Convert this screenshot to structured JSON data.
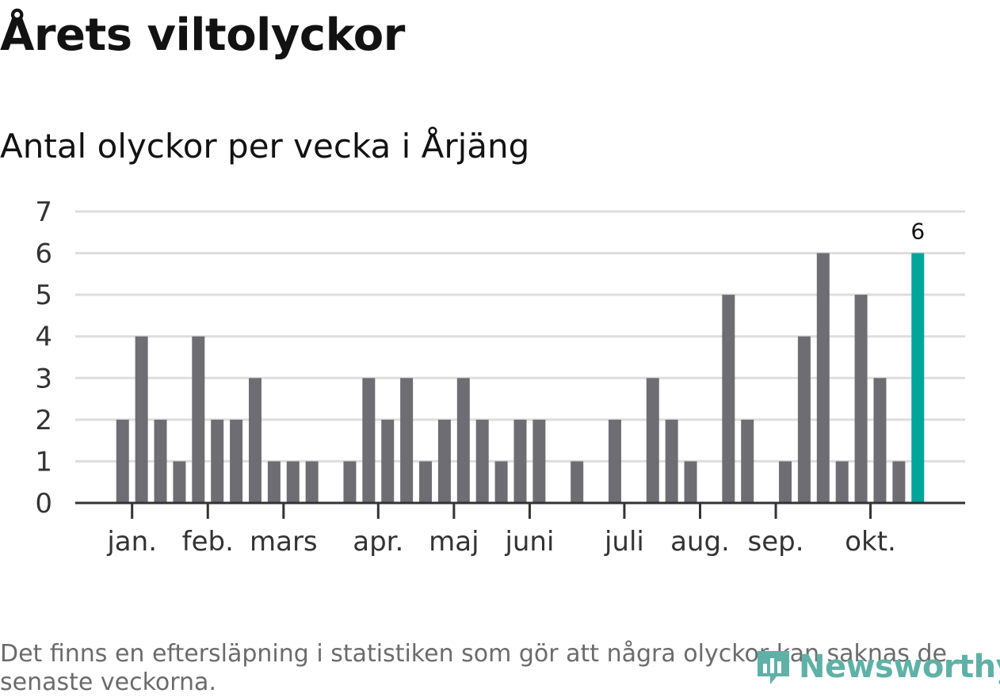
{
  "header": {
    "title": "Årets viltolyckor",
    "subtitle": "Antal olyckor per vecka i Årjäng"
  },
  "footer": {
    "note": "Det finns en eftersläpning i statistiken som gör att några olyckor kan saknas de senaste veckorna.",
    "brand": "Newsworthy"
  },
  "colors": {
    "bar": "#6e6d73",
    "highlight": "#00a599",
    "grid": "#dddddd",
    "axis": "#333333",
    "brand": "#5fb1a8"
  },
  "chart_data": {
    "type": "bar",
    "ylim": [
      0,
      7
    ],
    "yticks": [
      0,
      1,
      2,
      3,
      4,
      5,
      6,
      7
    ],
    "weeks": [
      1,
      2,
      3,
      4,
      5,
      6,
      7,
      8,
      9,
      10,
      11,
      12,
      13,
      14,
      15,
      16,
      17,
      18,
      19,
      20,
      21,
      22,
      23,
      24,
      25,
      26,
      27,
      28,
      29,
      30,
      31,
      32,
      33,
      34,
      35,
      36,
      37,
      38,
      39,
      40,
      41,
      42,
      43,
      44,
      45,
      46,
      47
    ],
    "values": [
      0,
      0,
      2,
      4,
      2,
      1,
      4,
      2,
      2,
      3,
      1,
      1,
      1,
      0,
      1,
      3,
      2,
      3,
      1,
      2,
      3,
      2,
      1,
      2,
      2,
      0,
      1,
      0,
      2,
      0,
      3,
      2,
      1,
      0,
      5,
      2,
      0,
      1,
      4,
      6,
      1,
      5,
      3,
      1,
      6,
      0,
      0
    ],
    "highlight_index": 44,
    "highlight_label": "6",
    "month_labels": [
      "jan.",
      "feb.",
      "mars",
      "apr.",
      "maj",
      "juni",
      "juli",
      "aug.",
      "sep.",
      "okt."
    ],
    "month_positions": [
      3.5,
      7.5,
      11.5,
      16.5,
      20.5,
      24.5,
      29.5,
      33.5,
      37.5,
      42.5
    ],
    "grid": true
  }
}
